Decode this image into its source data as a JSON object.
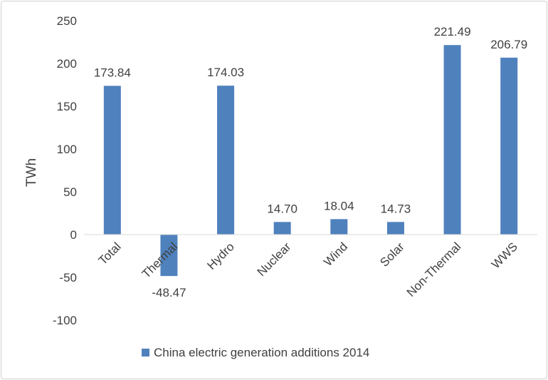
{
  "chart_data": {
    "type": "bar",
    "title": "",
    "xlabel": "",
    "ylabel": "TWh",
    "ylim": [
      -100,
      250
    ],
    "yticks": [
      250,
      200,
      150,
      100,
      50,
      0,
      -50,
      -100
    ],
    "grid": false,
    "legend_position": "bottom",
    "categories": [
      "Total",
      "Thermal",
      "Hydro",
      "Nuclear",
      "Wind",
      "Solar",
      "Non-Thermal",
      "WWS"
    ],
    "series": [
      {
        "name": "China electric generation additions 2014",
        "color": "#4f81bd",
        "values": [
          173.84,
          -48.47,
          174.03,
          14.7,
          18.04,
          14.73,
          221.49,
          206.79
        ],
        "labels": [
          "173.84",
          "-48.47",
          "174.03",
          "14.70",
          "18.04",
          "14.73",
          "221.49",
          "206.79"
        ]
      }
    ]
  }
}
